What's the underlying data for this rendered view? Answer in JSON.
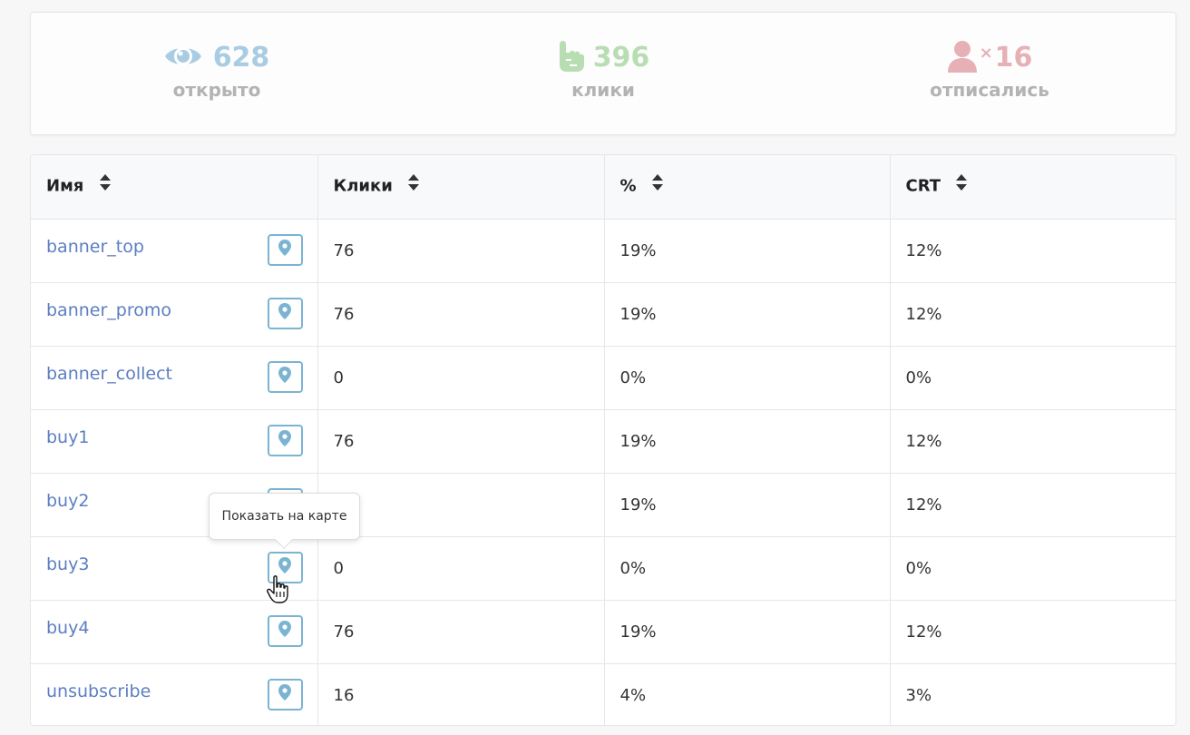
{
  "stats": {
    "opened": {
      "value": "628",
      "label": "открыто",
      "icon": "eye-icon",
      "color": "#a9cce2"
    },
    "clicks": {
      "value": "396",
      "label": "клики",
      "icon": "pointing-hand-icon",
      "color": "#b9ddb3"
    },
    "unsubscribed": {
      "value": "16",
      "prefix": "×",
      "label": "отписались",
      "icon": "user-icon",
      "color": "#e7b0b6"
    }
  },
  "table": {
    "columns": [
      "Имя",
      "Клики",
      "%",
      "CRT"
    ],
    "rows": [
      {
        "name": "banner_top",
        "clicks": "76",
        "percent": "19%",
        "crt": "12%"
      },
      {
        "name": "banner_promo",
        "clicks": "76",
        "percent": "19%",
        "crt": "12%"
      },
      {
        "name": "banner_collect",
        "clicks": "0",
        "percent": "0%",
        "crt": "0%"
      },
      {
        "name": "buy1",
        "clicks": "76",
        "percent": "19%",
        "crt": "12%"
      },
      {
        "name": "buy2",
        "clicks": "",
        "percent": "19%",
        "crt": "12%"
      },
      {
        "name": "buy3",
        "clicks": "0",
        "percent": "0%",
        "crt": "0%"
      },
      {
        "name": "buy4",
        "clicks": "76",
        "percent": "19%",
        "crt": "12%"
      },
      {
        "name": "unsubscribe",
        "clicks": "16",
        "percent": "4%",
        "crt": "3%"
      }
    ]
  },
  "tooltip": {
    "text": "Показать на карте"
  },
  "colors": {
    "link": "#5b7ec2",
    "map_button_border": "#7bb4d3",
    "pin": "#7bb4d3"
  }
}
